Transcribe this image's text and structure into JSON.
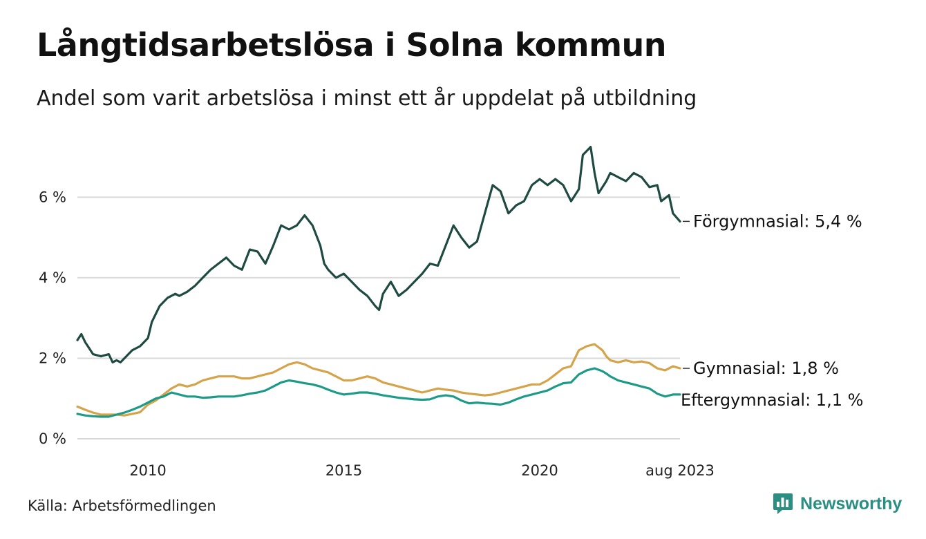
{
  "title": "Långtidsarbetslösa i Solna kommun",
  "subtitle": "Andel som varit arbetslösa i minst ett år uppdelat på utbildning",
  "source": "Källa: Arbetsförmedlingen",
  "brand": "Newsworthy",
  "colors": {
    "forgymnasial": "#1f4a42",
    "gymnasial": "#d4a34a",
    "eftergymnasial": "#1e9a88",
    "grid": "#d9d9d9",
    "brand": "#2a8f82"
  },
  "chart_data": {
    "type": "line",
    "x_unit": "year",
    "xlim": [
      2008.2,
      2023.58
    ],
    "ylim": [
      0,
      7.5
    ],
    "y_ticks": [
      0,
      2,
      4,
      6
    ],
    "y_tick_labels": [
      "0 %",
      "2 %",
      "4 %",
      "6 %"
    ],
    "x_ticks": [
      2010,
      2015,
      2020,
      2023.58
    ],
    "x_tick_labels": [
      "2010",
      "2015",
      "2020",
      "aug 2023"
    ],
    "grid": "horizontal",
    "legend": "end-labels",
    "series": [
      {
        "name": "Förgymnasial",
        "end_label": "Förgymnasial: 5,4 %",
        "color": "#1f4a42",
        "x": [
          2008.2,
          2008.3,
          2008.4,
          2008.6,
          2008.8,
          2009.0,
          2009.1,
          2009.2,
          2009.3,
          2009.4,
          2009.6,
          2009.8,
          2010.0,
          2010.1,
          2010.3,
          2010.5,
          2010.7,
          2010.8,
          2011.0,
          2011.2,
          2011.4,
          2011.6,
          2011.8,
          2012.0,
          2012.2,
          2012.4,
          2012.6,
          2012.8,
          2013.0,
          2013.2,
          2013.4,
          2013.6,
          2013.8,
          2014.0,
          2014.2,
          2014.4,
          2014.5,
          2014.6,
          2014.8,
          2015.0,
          2015.2,
          2015.4,
          2015.6,
          2015.8,
          2015.9,
          2016.0,
          2016.2,
          2016.4,
          2016.6,
          2016.8,
          2017.0,
          2017.2,
          2017.4,
          2017.6,
          2017.8,
          2018.0,
          2018.2,
          2018.4,
          2018.6,
          2018.8,
          2019.0,
          2019.2,
          2019.4,
          2019.6,
          2019.8,
          2020.0,
          2020.2,
          2020.4,
          2020.6,
          2020.8,
          2021.0,
          2021.1,
          2021.3,
          2021.4,
          2021.5,
          2021.7,
          2021.8,
          2022.0,
          2022.2,
          2022.4,
          2022.6,
          2022.8,
          2023.0,
          2023.1,
          2023.3,
          2023.4,
          2023.58
        ],
        "y": [
          2.45,
          2.6,
          2.4,
          2.1,
          2.05,
          2.1,
          1.9,
          1.95,
          1.9,
          2.0,
          2.2,
          2.3,
          2.5,
          2.9,
          3.3,
          3.5,
          3.6,
          3.55,
          3.65,
          3.8,
          4.0,
          4.2,
          4.35,
          4.5,
          4.3,
          4.2,
          4.7,
          4.65,
          4.35,
          4.8,
          5.3,
          5.2,
          5.3,
          5.55,
          5.3,
          4.8,
          4.35,
          4.2,
          4.0,
          4.1,
          3.9,
          3.7,
          3.55,
          3.3,
          3.2,
          3.6,
          3.9,
          3.55,
          3.7,
          3.9,
          4.1,
          4.35,
          4.3,
          4.8,
          5.3,
          5.0,
          4.75,
          4.9,
          5.6,
          6.3,
          6.15,
          5.6,
          5.8,
          5.9,
          6.3,
          6.45,
          6.3,
          6.45,
          6.3,
          5.9,
          6.2,
          7.05,
          7.25,
          6.6,
          6.1,
          6.4,
          6.6,
          6.5,
          6.4,
          6.6,
          6.5,
          6.25,
          6.3,
          5.9,
          6.05,
          5.6,
          5.4
        ]
      },
      {
        "name": "Gymnasial",
        "end_label": "Gymnasial: 1,8 %",
        "color": "#d4a34a",
        "x": [
          2008.2,
          2008.4,
          2008.6,
          2008.8,
          2009.0,
          2009.2,
          2009.4,
          2009.6,
          2009.8,
          2010.0,
          2010.2,
          2010.4,
          2010.6,
          2010.8,
          2011.0,
          2011.2,
          2011.4,
          2011.6,
          2011.8,
          2012.0,
          2012.2,
          2012.4,
          2012.6,
          2012.8,
          2013.0,
          2013.2,
          2013.4,
          2013.6,
          2013.8,
          2014.0,
          2014.2,
          2014.4,
          2014.6,
          2014.8,
          2015.0,
          2015.2,
          2015.4,
          2015.6,
          2015.8,
          2016.0,
          2016.2,
          2016.4,
          2016.6,
          2016.8,
          2017.0,
          2017.2,
          2017.4,
          2017.6,
          2017.8,
          2018.0,
          2018.2,
          2018.4,
          2018.6,
          2018.8,
          2019.0,
          2019.2,
          2019.4,
          2019.6,
          2019.8,
          2020.0,
          2020.2,
          2020.4,
          2020.6,
          2020.8,
          2021.0,
          2021.2,
          2021.4,
          2021.6,
          2021.7,
          2021.8,
          2022.0,
          2022.2,
          2022.4,
          2022.6,
          2022.8,
          2023.0,
          2023.2,
          2023.4,
          2023.58
        ],
        "y": [
          0.8,
          0.72,
          0.65,
          0.6,
          0.6,
          0.6,
          0.58,
          0.62,
          0.66,
          0.85,
          0.95,
          1.1,
          1.25,
          1.35,
          1.3,
          1.35,
          1.45,
          1.5,
          1.55,
          1.55,
          1.55,
          1.5,
          1.5,
          1.55,
          1.6,
          1.65,
          1.75,
          1.85,
          1.9,
          1.85,
          1.75,
          1.7,
          1.65,
          1.55,
          1.45,
          1.45,
          1.5,
          1.55,
          1.5,
          1.4,
          1.35,
          1.3,
          1.25,
          1.2,
          1.15,
          1.2,
          1.25,
          1.22,
          1.2,
          1.15,
          1.12,
          1.1,
          1.08,
          1.1,
          1.15,
          1.2,
          1.25,
          1.3,
          1.35,
          1.35,
          1.45,
          1.6,
          1.75,
          1.8,
          2.2,
          2.3,
          2.35,
          2.2,
          2.05,
          1.95,
          1.9,
          1.95,
          1.9,
          1.92,
          1.88,
          1.75,
          1.7,
          1.8,
          1.75
        ]
      },
      {
        "name": "Eftergymnasial",
        "end_label": "Eftergymnasial: 1,1 %",
        "color": "#1e9a88",
        "x": [
          2008.2,
          2008.4,
          2008.6,
          2008.8,
          2009.0,
          2009.2,
          2009.4,
          2009.6,
          2009.8,
          2010.0,
          2010.2,
          2010.4,
          2010.6,
          2010.8,
          2011.0,
          2011.2,
          2011.4,
          2011.6,
          2011.8,
          2012.0,
          2012.2,
          2012.4,
          2012.6,
          2012.8,
          2013.0,
          2013.2,
          2013.4,
          2013.6,
          2013.8,
          2014.0,
          2014.2,
          2014.4,
          2014.6,
          2014.8,
          2015.0,
          2015.2,
          2015.4,
          2015.6,
          2015.8,
          2016.0,
          2016.2,
          2016.4,
          2016.6,
          2016.8,
          2017.0,
          2017.2,
          2017.4,
          2017.6,
          2017.8,
          2018.0,
          2018.2,
          2018.4,
          2018.6,
          2018.8,
          2019.0,
          2019.2,
          2019.4,
          2019.6,
          2019.8,
          2020.0,
          2020.2,
          2020.4,
          2020.6,
          2020.8,
          2021.0,
          2021.2,
          2021.4,
          2021.6,
          2021.7,
          2021.8,
          2022.0,
          2022.2,
          2022.4,
          2022.6,
          2022.8,
          2023.0,
          2023.2,
          2023.4,
          2023.58
        ],
        "y": [
          0.62,
          0.58,
          0.56,
          0.55,
          0.55,
          0.6,
          0.65,
          0.72,
          0.8,
          0.9,
          1.0,
          1.05,
          1.15,
          1.1,
          1.05,
          1.05,
          1.02,
          1.03,
          1.05,
          1.05,
          1.05,
          1.08,
          1.12,
          1.15,
          1.2,
          1.3,
          1.4,
          1.45,
          1.42,
          1.38,
          1.35,
          1.3,
          1.22,
          1.15,
          1.1,
          1.12,
          1.15,
          1.15,
          1.12,
          1.08,
          1.05,
          1.02,
          1.0,
          0.98,
          0.97,
          0.98,
          1.05,
          1.08,
          1.05,
          0.95,
          0.88,
          0.9,
          0.88,
          0.87,
          0.85,
          0.9,
          0.98,
          1.05,
          1.1,
          1.15,
          1.2,
          1.3,
          1.38,
          1.4,
          1.6,
          1.7,
          1.75,
          1.68,
          1.62,
          1.55,
          1.45,
          1.4,
          1.35,
          1.3,
          1.25,
          1.12,
          1.05,
          1.1,
          1.1
        ]
      }
    ]
  }
}
